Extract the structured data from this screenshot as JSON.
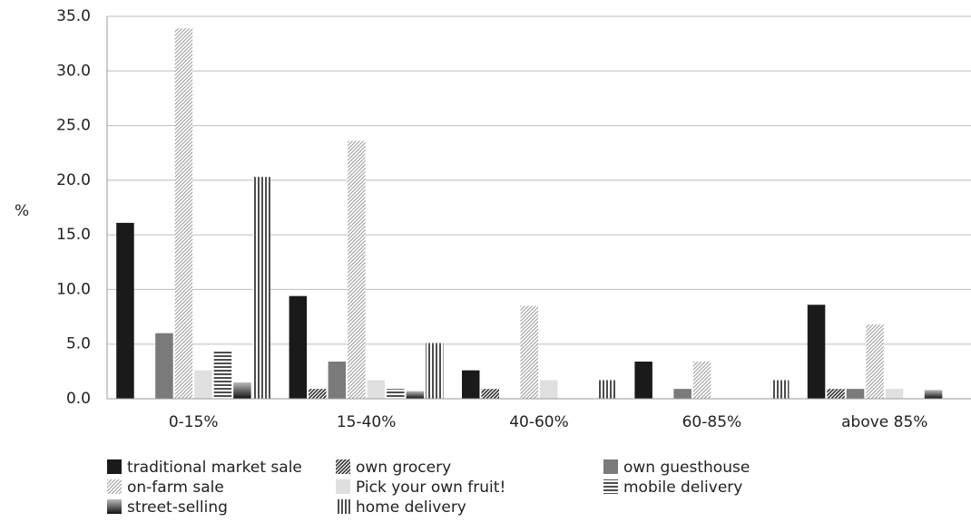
{
  "chart_data": {
    "type": "bar",
    "y_label": "%",
    "categories": [
      "0-15%",
      "15-40%",
      "40-60%",
      "60-85%",
      "above 85%"
    ],
    "series": [
      {
        "name": "traditional market sale",
        "color": "#1a1a1a",
        "pattern": "solid",
        "values": [
          16.1,
          9.4,
          2.6,
          3.4,
          8.6
        ]
      },
      {
        "name": "own grocery",
        "color": "#333333",
        "pattern": "diagonal",
        "values": [
          0,
          0.9,
          0.9,
          0,
          0.9
        ]
      },
      {
        "name": "own guesthouse",
        "color": "#7a7a7a",
        "pattern": "solid",
        "values": [
          6.0,
          3.4,
          0,
          0.9,
          0.9
        ]
      },
      {
        "name": "on-farm sale",
        "color": "#9a9a9a",
        "pattern": "diagonal",
        "values": [
          33.9,
          23.6,
          8.5,
          3.4,
          6.8
        ]
      },
      {
        "name": "Pick your own fruit!",
        "color": "#e0e0e0",
        "pattern": "solid",
        "values": [
          2.6,
          1.7,
          1.7,
          0,
          0.9
        ]
      },
      {
        "name": "mobile delivery",
        "color": "#222222",
        "pattern": "horizontal",
        "values": [
          4.4,
          0.9,
          0,
          0,
          0
        ]
      },
      {
        "name": "street-selling",
        "color": "#111111",
        "pattern": "gradient",
        "values": [
          1.5,
          0.7,
          0,
          0,
          0.8
        ]
      },
      {
        "name": "home delivery",
        "color": "#222222",
        "pattern": "vertical",
        "values": [
          20.3,
          5.1,
          1.7,
          1.7,
          0
        ]
      }
    ],
    "ylim": [
      0,
      35
    ],
    "yticks": [
      {
        "value": 0,
        "label": "0.0"
      },
      {
        "value": 5,
        "label": "5.0"
      },
      {
        "value": 10,
        "label": "10.0"
      },
      {
        "value": 15,
        "label": "15.0"
      },
      {
        "value": 20,
        "label": "20.0"
      },
      {
        "value": 25,
        "label": "25.0"
      },
      {
        "value": 30,
        "label": "30.0"
      },
      {
        "value": 35,
        "label": "35.0"
      }
    ],
    "grid": true
  }
}
